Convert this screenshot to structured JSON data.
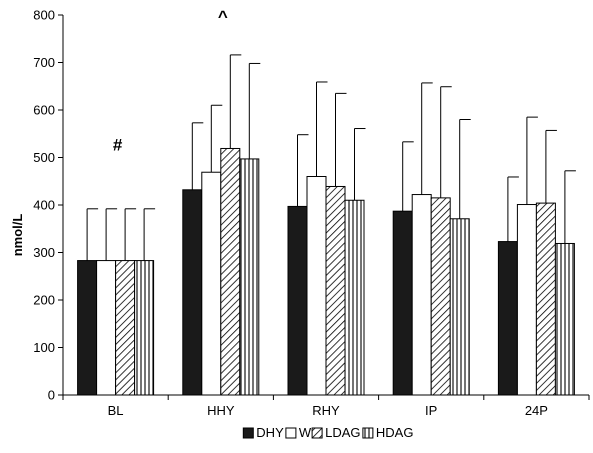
{
  "chart_data": {
    "type": "bar",
    "ylabel": "nmol/L",
    "xlabel": "",
    "ylim": [
      0,
      800
    ],
    "yticks": [
      0,
      100,
      200,
      300,
      400,
      500,
      600,
      700,
      800
    ],
    "categories": [
      "BL",
      "HHY",
      "RHY",
      "IP",
      "24P"
    ],
    "series": [
      {
        "name": "DHY",
        "fill": "solid-black",
        "values": [
          283,
          432,
          397,
          387,
          323
        ],
        "err_upper": [
          392,
          573,
          548,
          533,
          459
        ]
      },
      {
        "name": "W",
        "fill": "white",
        "values": [
          283,
          469,
          460,
          422,
          401
        ],
        "err_upper": [
          392,
          610,
          659,
          657,
          585
        ]
      },
      {
        "name": "LDAG",
        "fill": "diagonal-hatch",
        "values": [
          283,
          519,
          439,
          415,
          404
        ],
        "err_upper": [
          392,
          716,
          635,
          649,
          557
        ]
      },
      {
        "name": "HDAG",
        "fill": "vertical-stripes",
        "values": [
          283,
          497,
          410,
          371,
          319
        ],
        "err_upper": [
          392,
          698,
          561,
          580,
          472
        ]
      }
    ],
    "annotations": [
      {
        "text": "#",
        "category": "BL",
        "y": 515
      },
      {
        "text": "^",
        "category": "HHY",
        "y": 785
      }
    ],
    "legend": {
      "position": "bottom"
    }
  },
  "colors": {
    "axis": "#000000",
    "bar_dark": "#1a1a1a",
    "bar_light": "#ffffff"
  }
}
